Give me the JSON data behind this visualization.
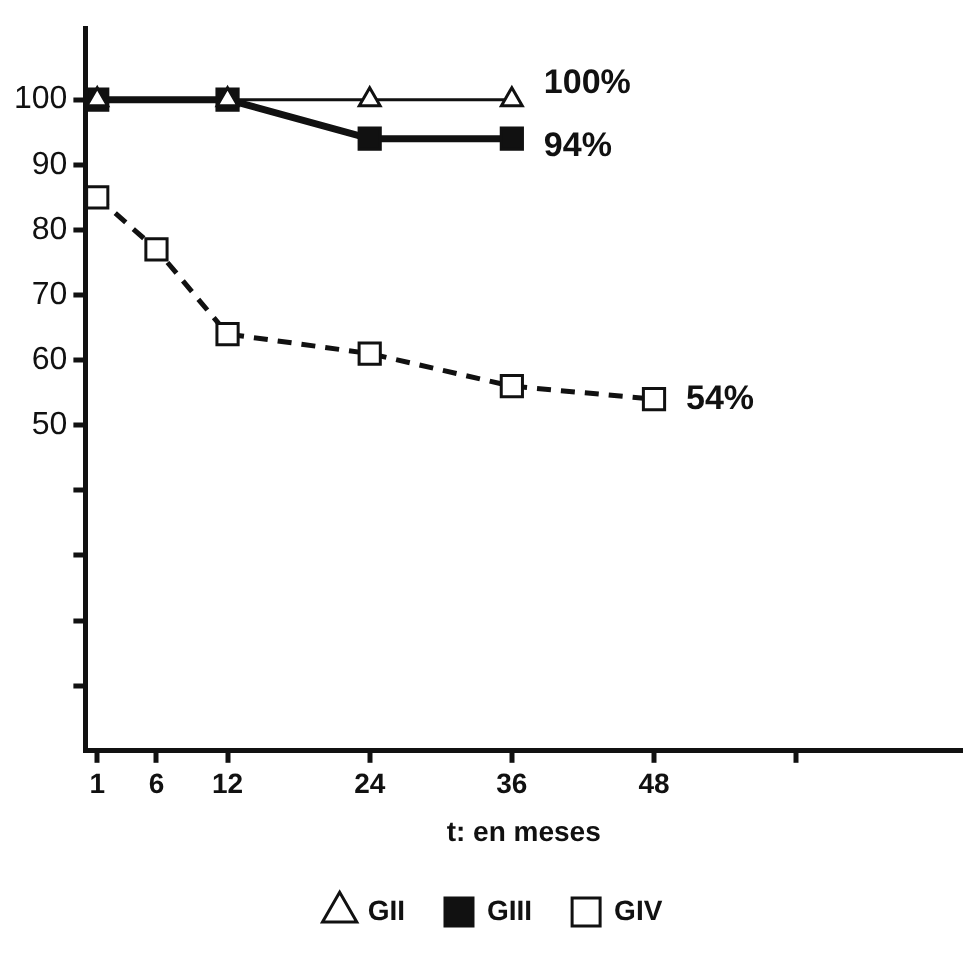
{
  "chart_data": {
    "type": "line",
    "xlabel": "t: en meses",
    "xlim": [
      0,
      74
    ],
    "ylim": [
      0,
      111
    ],
    "xticks": [
      1,
      6,
      12,
      24,
      36,
      48,
      {
        "value": 60,
        "label": null
      }
    ],
    "yticks": [
      {
        "value": 10,
        "label": null
      },
      {
        "value": 20,
        "label": null
      },
      {
        "value": 30,
        "label": null
      },
      {
        "value": 40,
        "label": null
      },
      50,
      60,
      70,
      80,
      90,
      100
    ],
    "grid": false,
    "legend": "bottom",
    "series": [
      {
        "name": "GII",
        "color": "#111111",
        "x": [
          1,
          12,
          24,
          36
        ],
        "values": [
          100,
          100,
          100,
          100
        ],
        "marker": "triangle",
        "line_style": "solid"
      },
      {
        "name": "GIII",
        "color": "#111111",
        "x": [
          1,
          12,
          24,
          36
        ],
        "values": [
          100,
          100,
          94,
          94
        ],
        "marker": "square",
        "line_style": "solid"
      },
      {
        "name": "GIV",
        "color": "#111111",
        "x": [
          1,
          6,
          12,
          24,
          36,
          48
        ],
        "values": [
          85,
          77,
          64,
          61,
          56,
          54
        ],
        "marker": "square",
        "line_style": "dashed"
      }
    ],
    "annotations": [
      "100%",
      "94%",
      "54%"
    ]
  }
}
